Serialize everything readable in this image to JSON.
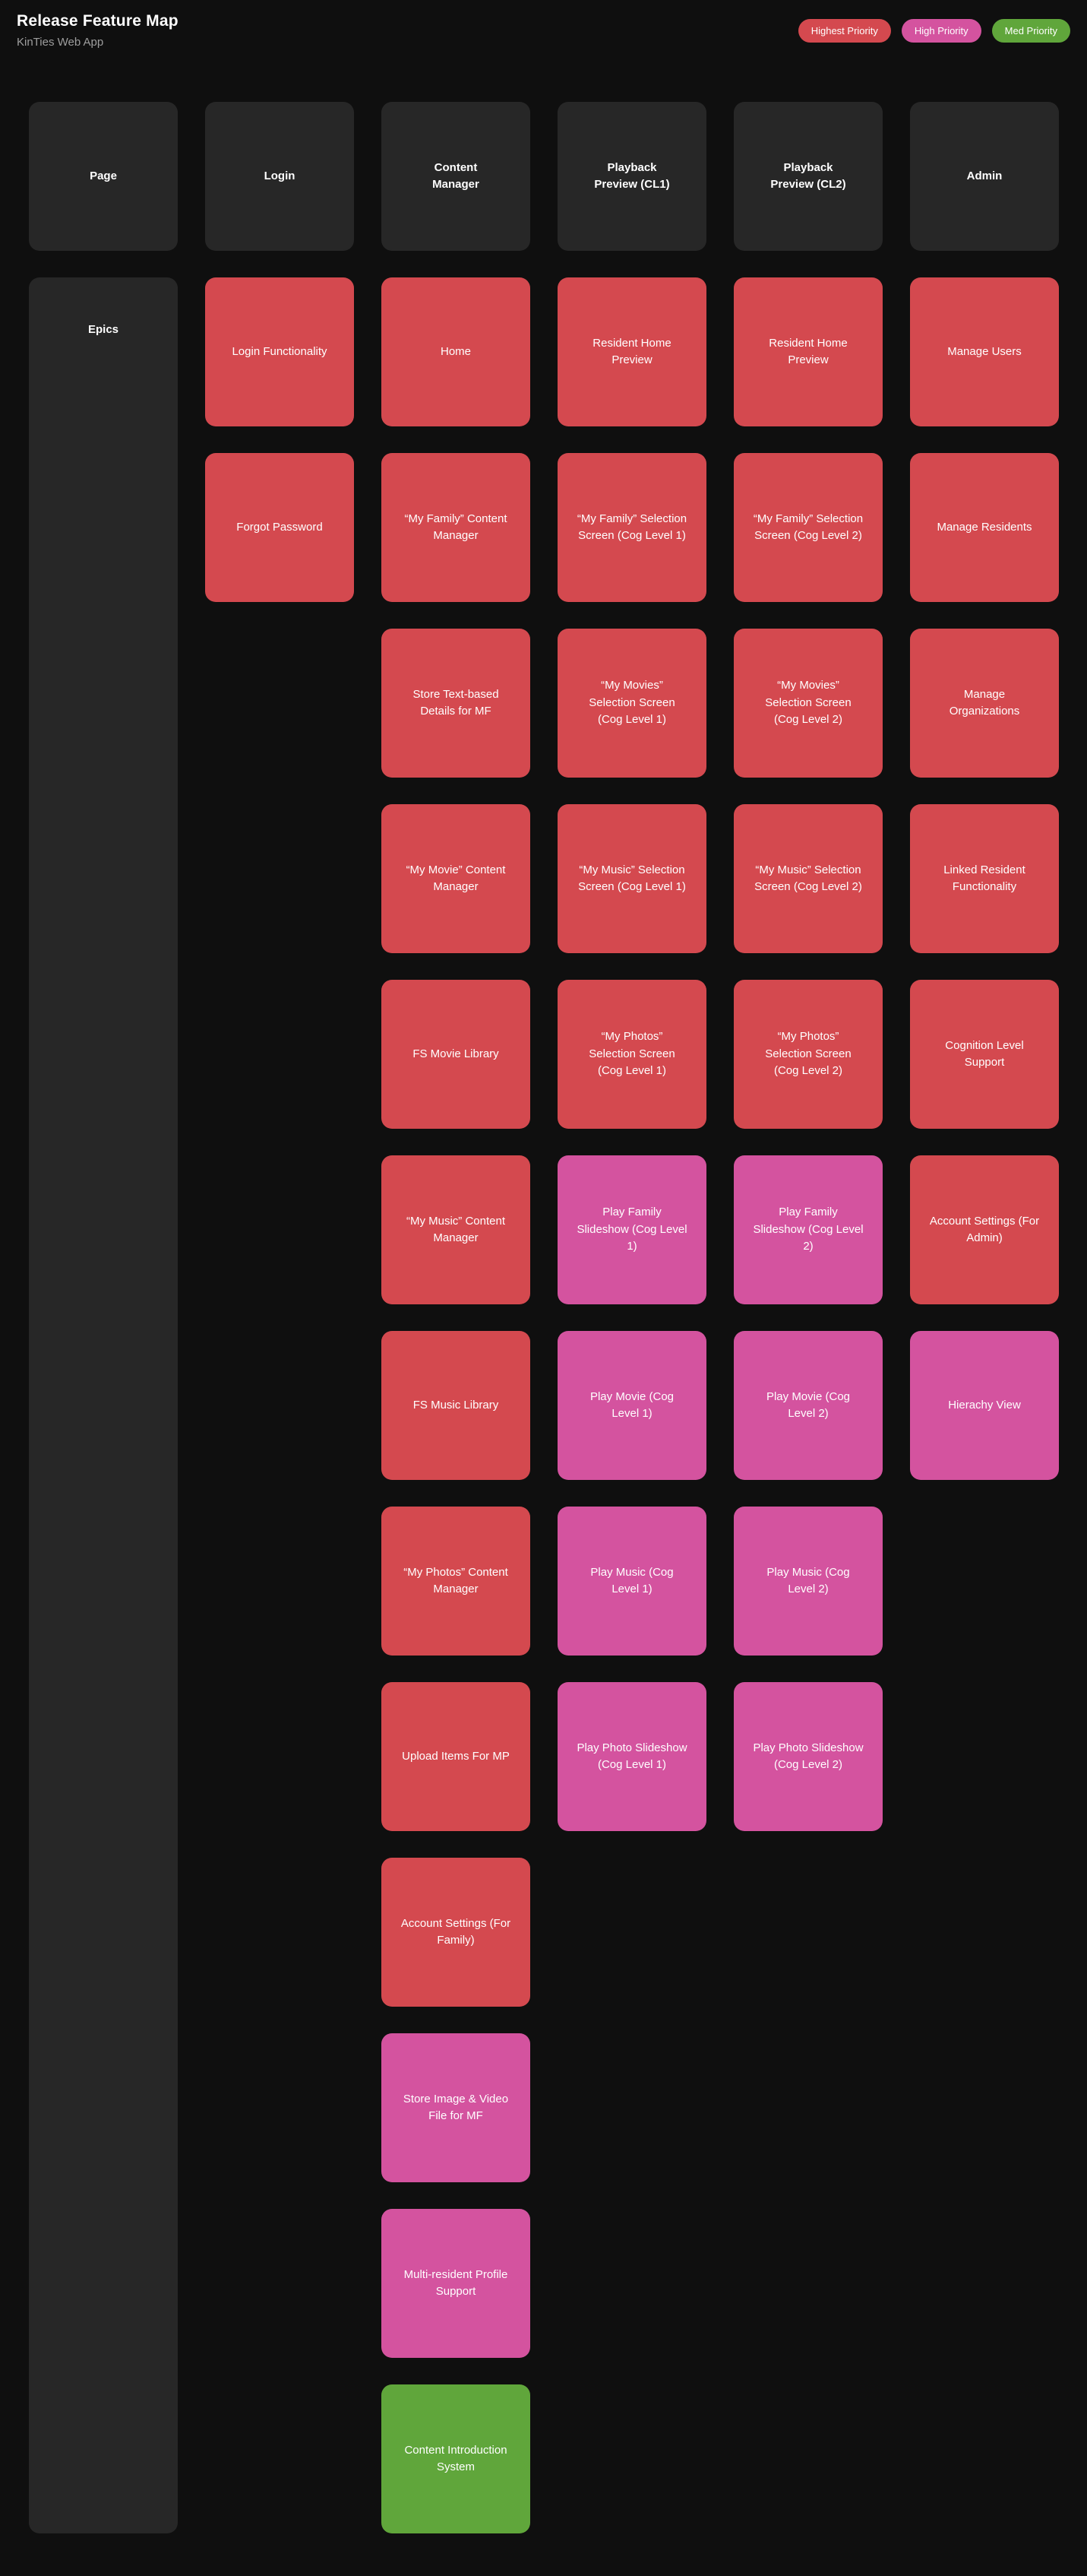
{
  "header": {
    "title": "Release Feature Map",
    "subtitle": "KinTies Web App"
  },
  "colors": {
    "highest": "#d4494f",
    "high": "#d4539f",
    "med": "#60a63b",
    "panel": "#272727",
    "background": "#0f0f0f"
  },
  "legend": [
    {
      "label": "Highest Priority",
      "priority": "highest"
    },
    {
      "label": "High Priority",
      "priority": "high"
    },
    {
      "label": "Med Priority",
      "priority": "med"
    }
  ],
  "board": {
    "axis": {
      "page_header": "Page",
      "epics_label": "Epics"
    },
    "columns": [
      {
        "header": "Login",
        "cards": [
          {
            "label": "Login Functionality",
            "priority": "highest"
          },
          {
            "label": "Forgot Password",
            "priority": "highest"
          }
        ]
      },
      {
        "header": "Content Manager",
        "cards": [
          {
            "label": "Home",
            "priority": "highest"
          },
          {
            "label": "“My Family” Content Manager",
            "priority": "highest"
          },
          {
            "label": "Store Text-based Details for MF",
            "priority": "highest"
          },
          {
            "label": "“My Movie” Content Manager",
            "priority": "highest"
          },
          {
            "label": "FS Movie Library",
            "priority": "highest"
          },
          {
            "label": "“My Music” Content Manager",
            "priority": "highest"
          },
          {
            "label": "FS Music Library",
            "priority": "highest"
          },
          {
            "label": "“My Photos” Content Manager",
            "priority": "highest"
          },
          {
            "label": "Upload Items For MP",
            "priority": "highest"
          },
          {
            "label": "Account Settings (For Family)",
            "priority": "highest"
          },
          {
            "label": "Store Image & Video File for MF",
            "priority": "high"
          },
          {
            "label": "Multi-resident Profile Support",
            "priority": "high"
          },
          {
            "label": "Content Introduction System",
            "priority": "med"
          }
        ]
      },
      {
        "header": "Playback Preview (CL1)",
        "cards": [
          {
            "label": "Resident Home Preview",
            "priority": "highest"
          },
          {
            "label": "“My Family” Selection Screen (Cog Level 1)",
            "priority": "highest"
          },
          {
            "label": "“My Movies” Selection Screen (Cog Level 1)",
            "priority": "highest"
          },
          {
            "label": "“My Music” Selection Screen (Cog Level 1)",
            "priority": "highest"
          },
          {
            "label": "“My Photos” Selection Screen (Cog Level 1)",
            "priority": "highest"
          },
          {
            "label": "Play Family Slideshow (Cog Level 1)",
            "priority": "high"
          },
          {
            "label": "Play Movie (Cog Level 1)",
            "priority": "high"
          },
          {
            "label": "Play Music (Cog Level 1)",
            "priority": "high"
          },
          {
            "label": "Play Photo Slideshow (Cog Level 1)",
            "priority": "high"
          }
        ]
      },
      {
        "header": "Playback Preview (CL2)",
        "cards": [
          {
            "label": "Resident Home Preview",
            "priority": "highest"
          },
          {
            "label": "“My Family” Selection Screen (Cog Level 2)",
            "priority": "highest"
          },
          {
            "label": "“My Movies” Selection Screen (Cog Level 2)",
            "priority": "highest"
          },
          {
            "label": "“My Music” Selection Screen (Cog Level 2)",
            "priority": "highest"
          },
          {
            "label": "“My Photos” Selection Screen (Cog Level 2)",
            "priority": "highest"
          },
          {
            "label": "Play Family Slideshow (Cog Level 2)",
            "priority": "high"
          },
          {
            "label": "Play Movie (Cog Level 2)",
            "priority": "high"
          },
          {
            "label": "Play Music (Cog Level 2)",
            "priority": "high"
          },
          {
            "label": "Play Photo Slideshow (Cog Level 2)",
            "priority": "high"
          }
        ]
      },
      {
        "header": "Admin",
        "cards": [
          {
            "label": "Manage Users",
            "priority": "highest"
          },
          {
            "label": "Manage Residents",
            "priority": "highest"
          },
          {
            "label": "Manage Organizations",
            "priority": "highest"
          },
          {
            "label": "Linked Resident Functionality",
            "priority": "highest"
          },
          {
            "label": "Cognition Level Support",
            "priority": "highest"
          },
          {
            "label": "Account Settings (For Admin)",
            "priority": "highest"
          },
          {
            "label": "Hierachy View",
            "priority": "high"
          }
        ]
      }
    ]
  }
}
